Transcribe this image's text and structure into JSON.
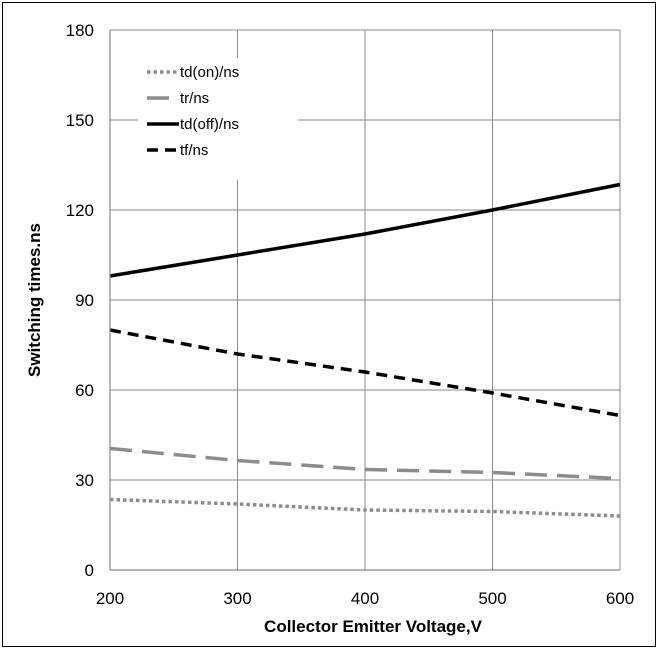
{
  "chart_data": {
    "type": "line",
    "xlabel": "Collector Emitter Voltage,V",
    "ylabel": "Switching times.ns",
    "xlim": [
      200,
      600
    ],
    "ylim": [
      0,
      180
    ],
    "xticks": [
      200,
      300,
      400,
      500,
      600
    ],
    "yticks": [
      0,
      30,
      60,
      90,
      120,
      150,
      180
    ],
    "xtick_labels": [
      "200",
      "300",
      "400",
      "500",
      "600"
    ],
    "ytick_labels": [
      "0",
      "30",
      "60",
      "90",
      "120",
      "150",
      "180"
    ],
    "grid": true,
    "legend_position": "top-left",
    "series": [
      {
        "name": "td(on)/ns",
        "style": "dotted",
        "color": "#8c8c8c",
        "x": [
          200,
          300,
          400,
          500,
          600
        ],
        "values": [
          23.5,
          22,
          20,
          19.5,
          18
        ]
      },
      {
        "name": "tr/ns",
        "style": "long-dash",
        "color": "#8c8c8c",
        "x": [
          200,
          300,
          400,
          500,
          600
        ],
        "values": [
          40.5,
          36.5,
          33.5,
          32.5,
          30.5
        ]
      },
      {
        "name": "td(off)/ns",
        "style": "solid",
        "color": "#000000",
        "x": [
          200,
          300,
          400,
          500,
          600
        ],
        "values": [
          98,
          105,
          112,
          120,
          128.5
        ]
      },
      {
        "name": "tf/ns",
        "style": "dash",
        "color": "#000000",
        "x": [
          200,
          300,
          400,
          500,
          600
        ],
        "values": [
          80,
          72,
          66,
          59,
          51.5
        ]
      }
    ]
  }
}
